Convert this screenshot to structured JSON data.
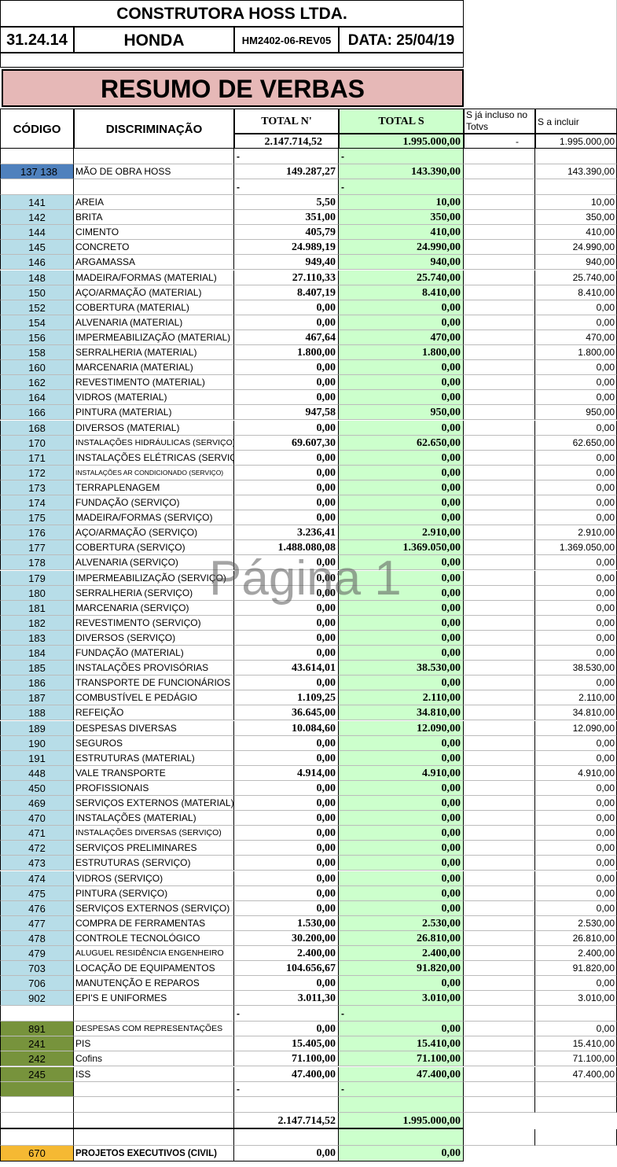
{
  "header": {
    "company": "CONSTRUTORA HOSS LTDA.",
    "code": "31.24.14",
    "project": "HONDA",
    "revision": "HM2402-06-REV05",
    "date": "DATA: 25/04/19"
  },
  "title": "RESUMO DE VERBAS",
  "columns": {
    "codigo": "CÓDIGO",
    "discriminacao": "DISCRIMINAÇÃO",
    "total_n": "TOTAL N'",
    "total_s": "TOTAL S",
    "ja_incluso": "S já incluso no Totvs",
    "a_incluir": "S a incluir"
  },
  "totals_top": {
    "total_n": "2.147.714,52",
    "total_s": "1.995.000,00",
    "ja_incluso": "-",
    "a_incluir": "1.995.000,00"
  },
  "dash": "-",
  "mao_obra": {
    "code": "137 138",
    "desc": "MÃO DE OBRA HOSS",
    "n": "149.287,27",
    "s": "143.390,00",
    "inc": "143.390,00"
  },
  "rows": [
    {
      "code": "141",
      "desc": "AREIA",
      "n": "5,50",
      "s": "10,00",
      "inc": "10,00"
    },
    {
      "code": "142",
      "desc": "BRITA",
      "n": "351,00",
      "s": "350,00",
      "inc": "350,00"
    },
    {
      "code": "144",
      "desc": "CIMENTO",
      "n": "405,79",
      "s": "410,00",
      "inc": "410,00"
    },
    {
      "code": "145",
      "desc": "CONCRETO",
      "n": "24.989,19",
      "s": "24.990,00",
      "inc": "24.990,00"
    },
    {
      "code": "146",
      "desc": "ARGAMASSA",
      "n": "949,40",
      "s": "940,00",
      "inc": "940,00"
    },
    {
      "code": "148",
      "desc": "MADEIRA/FORMAS (MATERIAL)",
      "n": "27.110,33",
      "s": "25.740,00",
      "inc": "25.740,00"
    },
    {
      "code": "150",
      "desc": "AÇO/ARMAÇÃO (MATERIAL)",
      "n": "8.407,19",
      "s": "8.410,00",
      "inc": "8.410,00"
    },
    {
      "code": "152",
      "desc": "COBERTURA (MATERIAL)",
      "n": "0,00",
      "s": "0,00",
      "inc": "0,00"
    },
    {
      "code": "154",
      "desc": "ALVENARIA (MATERIAL)",
      "n": "0,00",
      "s": "0,00",
      "inc": "0,00"
    },
    {
      "code": "156",
      "desc": "IMPERMEABILIZAÇÃO (MATERIAL)",
      "n": "467,64",
      "s": "470,00",
      "inc": "470,00"
    },
    {
      "code": "158",
      "desc": "SERRALHERIA (MATERIAL)",
      "n": "1.800,00",
      "s": "1.800,00",
      "inc": "1.800,00"
    },
    {
      "code": "160",
      "desc": "MARCENARIA (MATERIAL)",
      "n": "0,00",
      "s": "0,00",
      "inc": "0,00"
    },
    {
      "code": "162",
      "desc": "REVESTIMENTO (MATERIAL)",
      "n": "0,00",
      "s": "0,00",
      "inc": "0,00"
    },
    {
      "code": "164",
      "desc": "VIDROS (MATERIAL)",
      "n": "0,00",
      "s": "0,00",
      "inc": "0,00"
    },
    {
      "code": "166",
      "desc": "PINTURA (MATERIAL)",
      "n": "947,58",
      "s": "950,00",
      "inc": "950,00"
    },
    {
      "code": "168",
      "desc": "DIVERSOS (MATERIAL)",
      "n": "0,00",
      "s": "0,00",
      "inc": "0,00"
    },
    {
      "code": "170",
      "desc": "INSTALAÇÕES HIDRÁULICAS (SERVIÇO)",
      "n": "69.607,30",
      "s": "62.650,00",
      "inc": "62.650,00",
      "small": true
    },
    {
      "code": "171",
      "desc": "INSTALAÇÕES ELÉTRICAS (SERVIÇO)",
      "n": "0,00",
      "s": "0,00",
      "inc": "0,00"
    },
    {
      "code": "172",
      "desc": "INSTALAÇÕES AR CONDICIONADO (SERVIÇO)",
      "n": "0,00",
      "s": "0,00",
      "inc": "0,00",
      "tiny": true
    },
    {
      "code": "173",
      "desc": "TERRAPLENAGEM",
      "n": "0,00",
      "s": "0,00",
      "inc": "0,00"
    },
    {
      "code": "174",
      "desc": "FUNDAÇÃO (SERVIÇO)",
      "n": "0,00",
      "s": "0,00",
      "inc": "0,00"
    },
    {
      "code": "175",
      "desc": "MADEIRA/FORMAS (SERVIÇO)",
      "n": "0,00",
      "s": "0,00",
      "inc": "0,00"
    },
    {
      "code": "176",
      "desc": "AÇO/ARMAÇÃO (SERVIÇO)",
      "n": "3.236,41",
      "s": "2.910,00",
      "inc": "2.910,00"
    },
    {
      "code": "177",
      "desc": "COBERTURA (SERVIÇO)",
      "n": "1.488.080,08",
      "s": "1.369.050,00",
      "inc": "1.369.050,00"
    },
    {
      "code": "178",
      "desc": "ALVENARIA (SERVIÇO)",
      "n": "0,00",
      "s": "0,00",
      "inc": "0,00"
    },
    {
      "code": "179",
      "desc": "IMPERMEABILIZAÇÃO (SERVIÇO)",
      "n": "0,00",
      "s": "0,00",
      "inc": "0,00"
    },
    {
      "code": "180",
      "desc": "SERRALHERIA (SERVIÇO)",
      "n": "0,00",
      "s": "0,00",
      "inc": "0,00"
    },
    {
      "code": "181",
      "desc": "MARCENARIA (SERVIÇO)",
      "n": "0,00",
      "s": "0,00",
      "inc": "0,00"
    },
    {
      "code": "182",
      "desc": "REVESTIMENTO (SERVIÇO)",
      "n": "0,00",
      "s": "0,00",
      "inc": "0,00"
    },
    {
      "code": "183",
      "desc": "DIVERSOS (SERVIÇO)",
      "n": "0,00",
      "s": "0,00",
      "inc": "0,00"
    },
    {
      "code": "184",
      "desc": "FUNDAÇÃO (MATERIAL)",
      "n": "0,00",
      "s": "0,00",
      "inc": "0,00"
    },
    {
      "code": "185",
      "desc": "INSTALAÇÕES PROVISÓRIAS",
      "n": "43.614,01",
      "s": "38.530,00",
      "inc": "38.530,00"
    },
    {
      "code": "186",
      "desc": "TRANSPORTE DE FUNCIONÁRIOS",
      "n": "0,00",
      "s": "0,00",
      "inc": "0,00"
    },
    {
      "code": "187",
      "desc": "COMBUSTÍVEL E PEDÁGIO",
      "n": "1.109,25",
      "s": "2.110,00",
      "inc": "2.110,00"
    },
    {
      "code": "188",
      "desc": "REFEIÇÃO",
      "n": "36.645,00",
      "s": "34.810,00",
      "inc": "34.810,00"
    },
    {
      "code": "189",
      "desc": "DESPESAS DIVERSAS",
      "n": "10.084,60",
      "s": "12.090,00",
      "inc": "12.090,00"
    },
    {
      "code": "190",
      "desc": "SEGUROS",
      "n": "0,00",
      "s": "0,00",
      "inc": "0,00"
    },
    {
      "code": "191",
      "desc": "ESTRUTURAS (MATERIAL)",
      "n": "0,00",
      "s": "0,00",
      "inc": "0,00"
    },
    {
      "code": "448",
      "desc": " VALE TRANSPORTE",
      "n": "4.914,00",
      "s": "4.910,00",
      "inc": "4.910,00"
    },
    {
      "code": "450",
      "desc": "PROFISSIONAIS",
      "n": "0,00",
      "s": "0,00",
      "inc": "0,00"
    },
    {
      "code": "469",
      "desc": "SERVIÇOS EXTERNOS (MATERIAL)",
      "n": "0,00",
      "s": "0,00",
      "inc": "0,00"
    },
    {
      "code": "470",
      "desc": "INSTALAÇÕES (MATERIAL)",
      "n": "0,00",
      "s": "0,00",
      "inc": "0,00"
    },
    {
      "code": "471",
      "desc": "INSTALAÇÕES DIVERSAS (SERVIÇO)",
      "n": "0,00",
      "s": "0,00",
      "inc": "0,00",
      "small": true
    },
    {
      "code": "472",
      "desc": "SERVIÇOS PRELIMINARES",
      "n": "0,00",
      "s": "0,00",
      "inc": "0,00"
    },
    {
      "code": "473",
      "desc": "ESTRUTURAS (SERVIÇO)",
      "n": "0,00",
      "s": "0,00",
      "inc": "0,00"
    },
    {
      "code": "474",
      "desc": "VIDROS (SERVIÇO)",
      "n": "0,00",
      "s": "0,00",
      "inc": "0,00"
    },
    {
      "code": "475",
      "desc": "PINTURA (SERVIÇO)",
      "n": "0,00",
      "s": "0,00",
      "inc": "0,00"
    },
    {
      "code": "476",
      "desc": "SERVIÇOS EXTERNOS (SERVIÇO)",
      "n": "0,00",
      "s": "0,00",
      "inc": "0,00"
    },
    {
      "code": "477",
      "desc": "COMPRA DE FERRAMENTAS",
      "n": "1.530,00",
      "s": "2.530,00",
      "inc": "2.530,00"
    },
    {
      "code": "478",
      "desc": "CONTROLE TECNOLÓGICO",
      "n": "30.200,00",
      "s": "26.810,00",
      "inc": "26.810,00"
    },
    {
      "code": "479",
      "desc": "ALUGUEL RESIDÊNCIA ENGENHEIRO",
      "n": "2.400,00",
      "s": "2.400,00",
      "inc": "2.400,00",
      "small": true
    },
    {
      "code": "703",
      "desc": "LOCAÇÃO DE EQUIPAMENTOS",
      "n": "104.656,67",
      "s": "91.820,00",
      "inc": "91.820,00"
    },
    {
      "code": "706",
      "desc": "MANUTENÇÃO E REPAROS",
      "n": "0,00",
      "s": "0,00",
      "inc": "0,00"
    },
    {
      "code": "902",
      "desc": "EPI'S E UNIFORMES",
      "n": "3.011,30",
      "s": "3.010,00",
      "inc": "3.010,00"
    }
  ],
  "tax_rows": [
    {
      "code": "891",
      "desc": "DESPESAS COM REPRESENTAÇÕES",
      "n": "0,00",
      "s": "0,00",
      "inc": "0,00",
      "small": true
    },
    {
      "code": "241",
      "desc": "PIS",
      "n": "15.405,00",
      "s": "15.410,00",
      "inc": "15.410,00"
    },
    {
      "code": "242",
      "desc": "Cofins",
      "n": "71.100,00",
      "s": "71.100,00",
      "inc": "71.100,00"
    },
    {
      "code": "245",
      "desc": "ISS",
      "n": "47.400,00",
      "s": "47.400,00",
      "inc": "47.400,00"
    }
  ],
  "totals_bottom": {
    "total_n": "2.147.714,52",
    "total_s": "1.995.000,00"
  },
  "projetos": {
    "code": "670",
    "desc": "PROJETOS EXECUTIVOS (CIVIL)",
    "n": "0,00",
    "s": "0,00"
  },
  "watermark": "Página 1",
  "colors": {
    "header_pink": "#e6b8b7",
    "code_blue": "#b7dde8",
    "code_blue_dark": "#4f81bd",
    "total_s_green": "#ccffcc",
    "tax_olive": "#77933c",
    "projetos_orange": "#f5b933"
  }
}
